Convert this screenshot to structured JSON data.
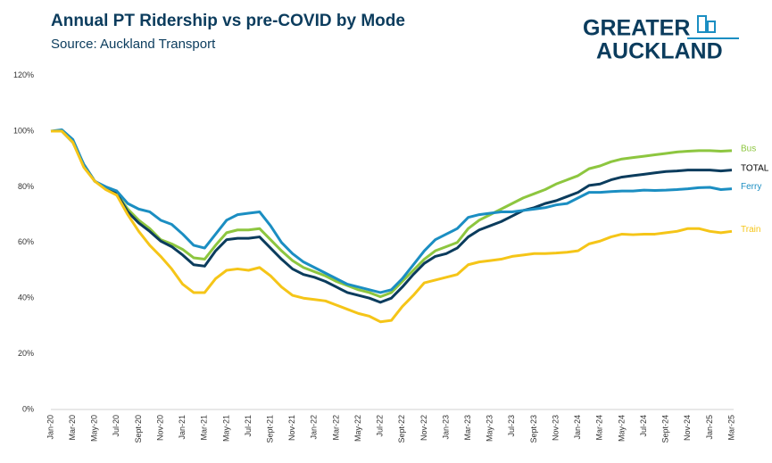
{
  "chart_data": {
    "type": "line",
    "title": "Annual PT Ridership vs pre-COVID by Mode",
    "subtitle": "Source: Auckland Transport",
    "logo": [
      "GREATER",
      "AUCKLAND"
    ],
    "categories": [
      "Jan-20",
      null,
      "Mar-20",
      null,
      "May-20",
      null,
      "Jul-20",
      null,
      "Sept-20",
      null,
      "Nov-20",
      null,
      "Jan-21",
      null,
      "Mar-21",
      null,
      "May-21",
      null,
      "Jul-21",
      null,
      "Sept-21",
      null,
      "Nov-21",
      null,
      "Jan-22",
      null,
      "Mar-22",
      null,
      "May-22",
      null,
      "Jul-22",
      null,
      "Sept-22",
      null,
      "Nov-22",
      null,
      "Jan-23",
      null,
      "Mar-23",
      null,
      "May-23",
      null,
      "Jul-23",
      null,
      "Sept-23",
      null,
      "Nov-23",
      null,
      "Jan-24",
      null,
      "Mar-24",
      null,
      "May-24",
      null,
      "Jul-24",
      null,
      "Sept-24",
      null,
      "Nov-24",
      null,
      "Jan-25",
      null,
      "Mar-25"
    ],
    "ylim": [
      0,
      120
    ],
    "yticks": [
      {
        "value": 0,
        "label": "0%"
      },
      {
        "value": 20,
        "label": "20%"
      },
      {
        "value": 40,
        "label": "40%"
      },
      {
        "value": 60,
        "label": "60%"
      },
      {
        "value": 80,
        "label": "80%"
      },
      {
        "value": 100,
        "label": "100%"
      },
      {
        "value": 120,
        "label": "120%"
      }
    ],
    "grid": false,
    "series": [
      {
        "name": "Bus",
        "color": "#8dc63f",
        "values": [
          100,
          100,
          96,
          88,
          82,
          79.5,
          77.5,
          72,
          68,
          65,
          61,
          59.5,
          57.5,
          54.5,
          54,
          59,
          63.5,
          64.5,
          64.5,
          65,
          61,
          57,
          53.5,
          51,
          49.5,
          48,
          46,
          44.5,
          43,
          42,
          40.5,
          42,
          46,
          50,
          54,
          57,
          58.5,
          60,
          65,
          68,
          70,
          72,
          74,
          76,
          77.5,
          79,
          81,
          82.5,
          84,
          86.5,
          87.5,
          89,
          90,
          90.5,
          91,
          91.5,
          92,
          92.5,
          92.8,
          93,
          93,
          92.8,
          93
        ]
      },
      {
        "name": "TOTAL",
        "color": "#0b3c5d",
        "values": [
          100,
          100,
          96,
          88,
          82,
          79.5,
          77.5,
          71,
          67,
          64,
          60.5,
          58.5,
          55.5,
          52,
          51.5,
          57,
          61,
          61.5,
          61.5,
          62,
          58,
          54,
          50.5,
          48.5,
          47.5,
          46,
          44,
          42,
          41,
          40,
          38.5,
          40,
          44,
          48.5,
          52.5,
          55,
          56,
          58,
          62,
          64.5,
          66,
          67.5,
          69.5,
          71.5,
          72.5,
          74,
          75,
          76.5,
          78,
          80.5,
          81,
          82.5,
          83.5,
          84,
          84.5,
          85,
          85.5,
          85.7,
          86,
          86,
          86,
          85.7,
          86
        ]
      },
      {
        "name": "Ferry",
        "color": "#1b8ec2",
        "values": [
          100,
          100.5,
          97,
          88,
          82,
          80,
          78.5,
          74,
          72,
          71,
          68,
          66.5,
          63,
          59,
          58,
          63,
          68,
          70,
          70.5,
          71,
          66,
          60,
          56,
          53,
          51,
          49,
          47,
          45,
          44,
          43,
          42,
          43,
          47,
          52,
          57,
          61,
          63,
          65,
          69,
          70,
          70.5,
          71,
          71,
          71.5,
          72,
          72.5,
          73.5,
          74,
          76,
          78,
          78,
          78.3,
          78.5,
          78.5,
          78.8,
          78.7,
          78.8,
          79,
          79.3,
          79.7,
          79.8,
          79,
          79.3
        ]
      },
      {
        "name": "Train",
        "color": "#f5c518",
        "values": [
          100,
          100,
          96,
          87,
          82,
          79,
          77,
          70,
          64,
          59,
          55,
          50.5,
          45,
          42,
          42,
          47,
          50,
          50.5,
          50,
          51,
          48,
          44,
          41,
          40,
          39.5,
          39,
          37.5,
          36,
          34.5,
          33.5,
          31.5,
          32,
          37,
          41,
          45.5,
          46.5,
          47.5,
          48.5,
          52,
          53,
          53.5,
          54,
          55,
          55.5,
          56,
          56,
          56.2,
          56.5,
          57,
          59.5,
          60.5,
          62,
          63,
          62.8,
          63,
          63,
          63.5,
          64,
          65,
          65,
          64,
          63.5,
          64
        ]
      }
    ]
  }
}
